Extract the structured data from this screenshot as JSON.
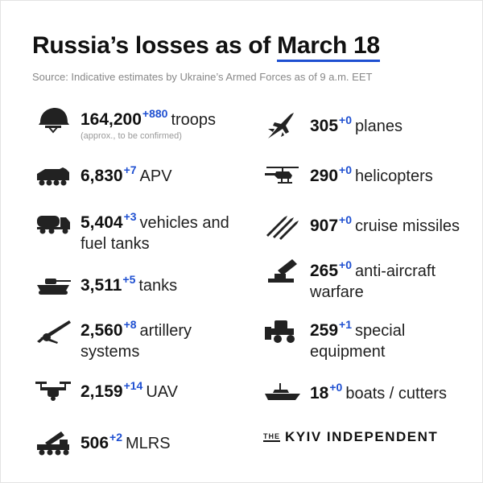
{
  "header": {
    "title_prefix": "Russia’s losses  as of",
    "title_date": "March 18",
    "source": "Source: Indicative estimates by Ukraine’s Armed Forces as of 9 a.m. EET"
  },
  "left_items": [
    {
      "icon": "soldier-helmet-icon",
      "value": "164,200",
      "delta": "+880",
      "label": "troops",
      "note": "(approx., to be confirmed)"
    },
    {
      "icon": "apv-icon",
      "value": "6,830",
      "delta": "+7",
      "label": "APV"
    },
    {
      "icon": "fuel-truck-icon",
      "value": "5,404",
      "delta": "+3",
      "label": "vehicles and fuel tanks"
    },
    {
      "icon": "tank-icon",
      "value": "3,511",
      "delta": "+5",
      "label": "tanks"
    },
    {
      "icon": "artillery-icon",
      "value": "2,560",
      "delta": "+8",
      "label": "artillery systems"
    },
    {
      "icon": "drone-icon",
      "value": "2,159",
      "delta": "+14",
      "label": "UAV"
    },
    {
      "icon": "mlrs-icon",
      "value": "506",
      "delta": "+2",
      "label": "MLRS"
    }
  ],
  "right_items": [
    {
      "icon": "plane-icon",
      "value": "305",
      "delta": "+0",
      "label": "planes"
    },
    {
      "icon": "helicopter-icon",
      "value": "290",
      "delta": "+0",
      "label": "helicopters"
    },
    {
      "icon": "missile-icon",
      "value": "907",
      "delta": "+0",
      "label": "cruise missiles"
    },
    {
      "icon": "anti-aircraft-icon",
      "value": "265",
      "delta": "+0",
      "label": "anti-aircraft warfare"
    },
    {
      "icon": "bulldozer-icon",
      "value": "259",
      "delta": "+1",
      "label": "special equipment"
    },
    {
      "icon": "boat-icon",
      "value": "18",
      "delta": "+0",
      "label": "boats / cutters"
    }
  ],
  "brand": {
    "the": "THE",
    "name": "KYIV INDEPENDENT"
  },
  "colors": {
    "accent": "#1e4fd1",
    "text": "#111111",
    "muted": "#888888"
  }
}
